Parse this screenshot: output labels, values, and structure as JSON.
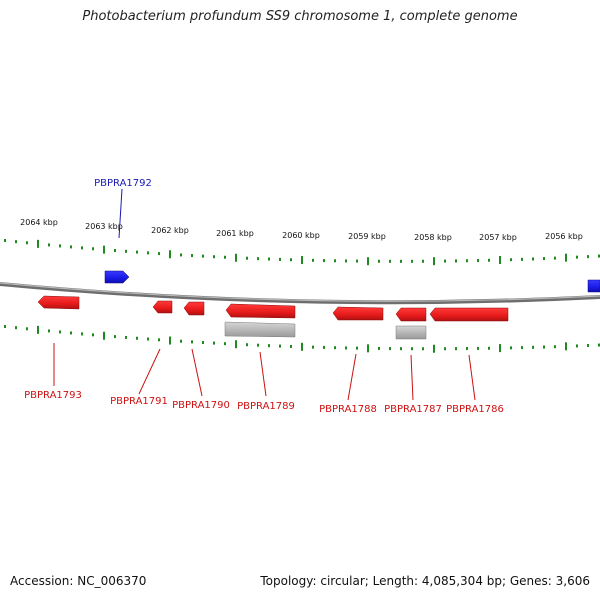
{
  "title": "Photobacterium profundum SS9 chromosome 1, complete genome",
  "footer": {
    "accession": "Accession: NC_006370",
    "stats": "Topology: circular; Length: 4,085,304 bp; Genes: 3,606"
  },
  "colors": {
    "forward_gene": "#1a1ae6",
    "reverse_gene": "#e61a1a",
    "secondary_feature": "#b3b3b3",
    "ticks": "#1f8a1f",
    "backbone": "#808080",
    "forward_label": "#1a1ab3",
    "reverse_label": "#cc1111"
  },
  "scale": {
    "unit": "kbp",
    "labels": [
      "2064 kbp",
      "2063 kbp",
      "2062 kbp",
      "2061 kbp",
      "2060 kbp",
      "2059 kbp",
      "2058 kbp",
      "2057 kbp",
      "2056 kbp"
    ]
  },
  "genes": [
    {
      "name": "PBPRA1792",
      "strand": "+",
      "labeled": true
    },
    {
      "name": "",
      "strand": "+",
      "labeled": false
    },
    {
      "name": "PBPRA1793",
      "strand": "-",
      "labeled": true
    },
    {
      "name": "PBPRA1791",
      "strand": "-",
      "labeled": true
    },
    {
      "name": "PBPRA1790",
      "strand": "-",
      "labeled": true
    },
    {
      "name": "PBPRA1789",
      "strand": "-",
      "labeled": true
    },
    {
      "name": "PBPRA1788",
      "strand": "-",
      "labeled": true
    },
    {
      "name": "PBPRA1787",
      "strand": "-",
      "labeled": true
    },
    {
      "name": "PBPRA1786",
      "strand": "-",
      "labeled": true
    }
  ]
}
